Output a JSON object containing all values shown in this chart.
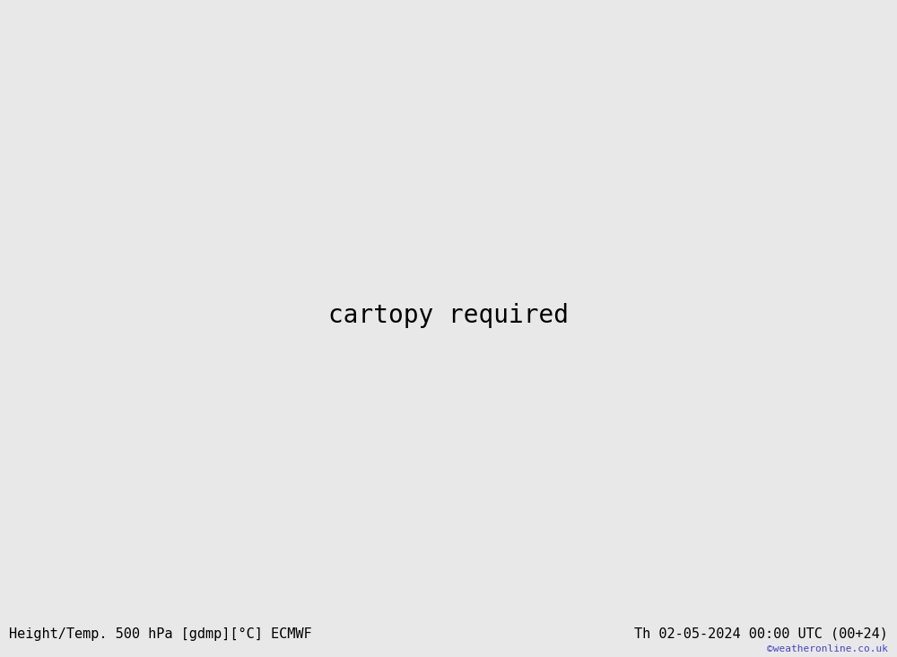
{
  "title_left": "Height/Temp. 500 hPa [gdmp][°C] ECMWF",
  "title_right": "Th 02-05-2024 00:00 UTC (00+24)",
  "watermark": "©weatheronline.co.uk",
  "background_color": "#e8e8e8",
  "land_color": "#ccffcc",
  "land_border_color": "#888888",
  "height_contour_color": "#000000",
  "temp_neg_color_warm": "#cc0000",
  "temp_neg_color_mid": "#cc6600",
  "temp_neg_color_cold": "#00aa00",
  "font_family": "monospace"
}
